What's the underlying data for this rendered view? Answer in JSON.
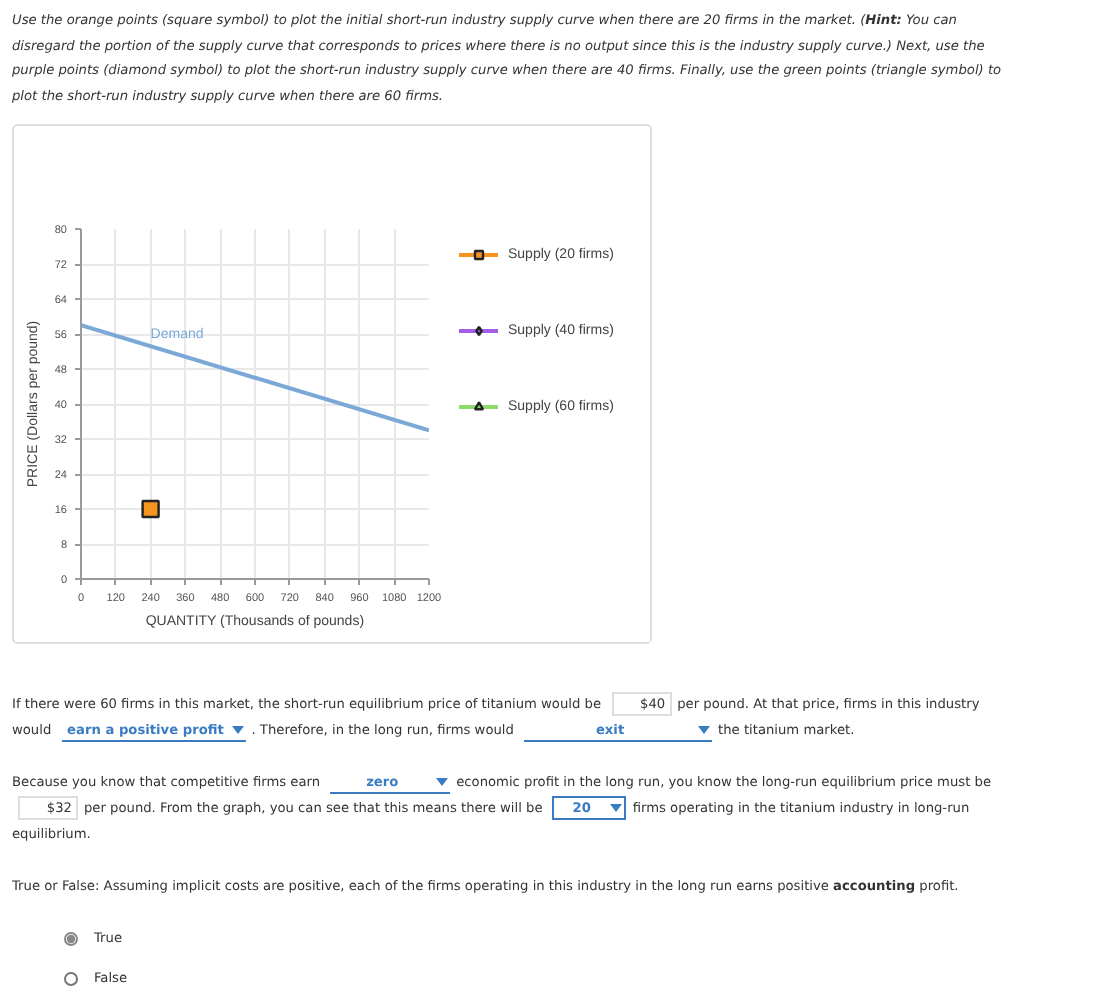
{
  "chart_data": {
    "type": "line",
    "annotations": [
      "Use the orange points (square symbol) to plot the initial short-run industry supply curve when there are 20 firms in the market. (",
      "Hint:",
      "You can disregard the portion of the supply curve that corresponds to prices where there is no output since this is the industry supply curve.) Next, use the purple points (diamond symbol) to plot the short-run industry supply curve when there are 40 firms. Finally, use the green points (triangle symbol) to plot the short-run industry supply curve when there are 60 firms.",
      "If there were 60 firms in this market, the short-run equilibrium price of titanium would be",
      "$40",
      "per pound. At that price, firms in this industry would",
      "earn a positive profit",
      ". Therefore, in the long run, firms would",
      "exit",
      "the titanium market.",
      "Because you know that competitive firms earn",
      "zero",
      "economic profit in the long run, you know the long-run equilibrium price must be",
      "$32",
      "per pound. From the graph, you can see that this means there will be",
      "20",
      "firms operating in the titanium industry in long-run equilibrium.",
      "True or False: Assuming implicit costs are positive, each of the firms operating in this industry in the long run earns positive",
      "accounting",
      "profit.",
      "True",
      "False"
    ],
    "xlabel": "QUANTITY (Thousands of pounds)",
    "ylabel": "PRICE (Dollars per pound)",
    "xlim": [
      0,
      1200
    ],
    "ylim": [
      0,
      80
    ],
    "xticks": [
      0,
      120,
      240,
      360,
      480,
      600,
      720,
      840,
      960,
      1080,
      1200
    ],
    "yticks": [
      0,
      8,
      16,
      24,
      32,
      40,
      48,
      56,
      64,
      72,
      80
    ],
    "grid": true,
    "legend": "right",
    "series": [
      {
        "name": "Demand",
        "marker": "none",
        "color": "#7aa9d8",
        "x": [
          0,
          1200
        ],
        "values": [
          58,
          34
        ]
      },
      {
        "name": "Supply (20 firms)",
        "marker": "square",
        "color": "#f7941d",
        "x": [
          240
        ],
        "values": [
          16
        ]
      },
      {
        "name": "Supply (40 firms)",
        "marker": "diamond",
        "color": "#a45ee5"
      },
      {
        "name": "Supply (60 firms)",
        "marker": "triangle",
        "color": "#8fdc6a"
      }
    ]
  }
}
